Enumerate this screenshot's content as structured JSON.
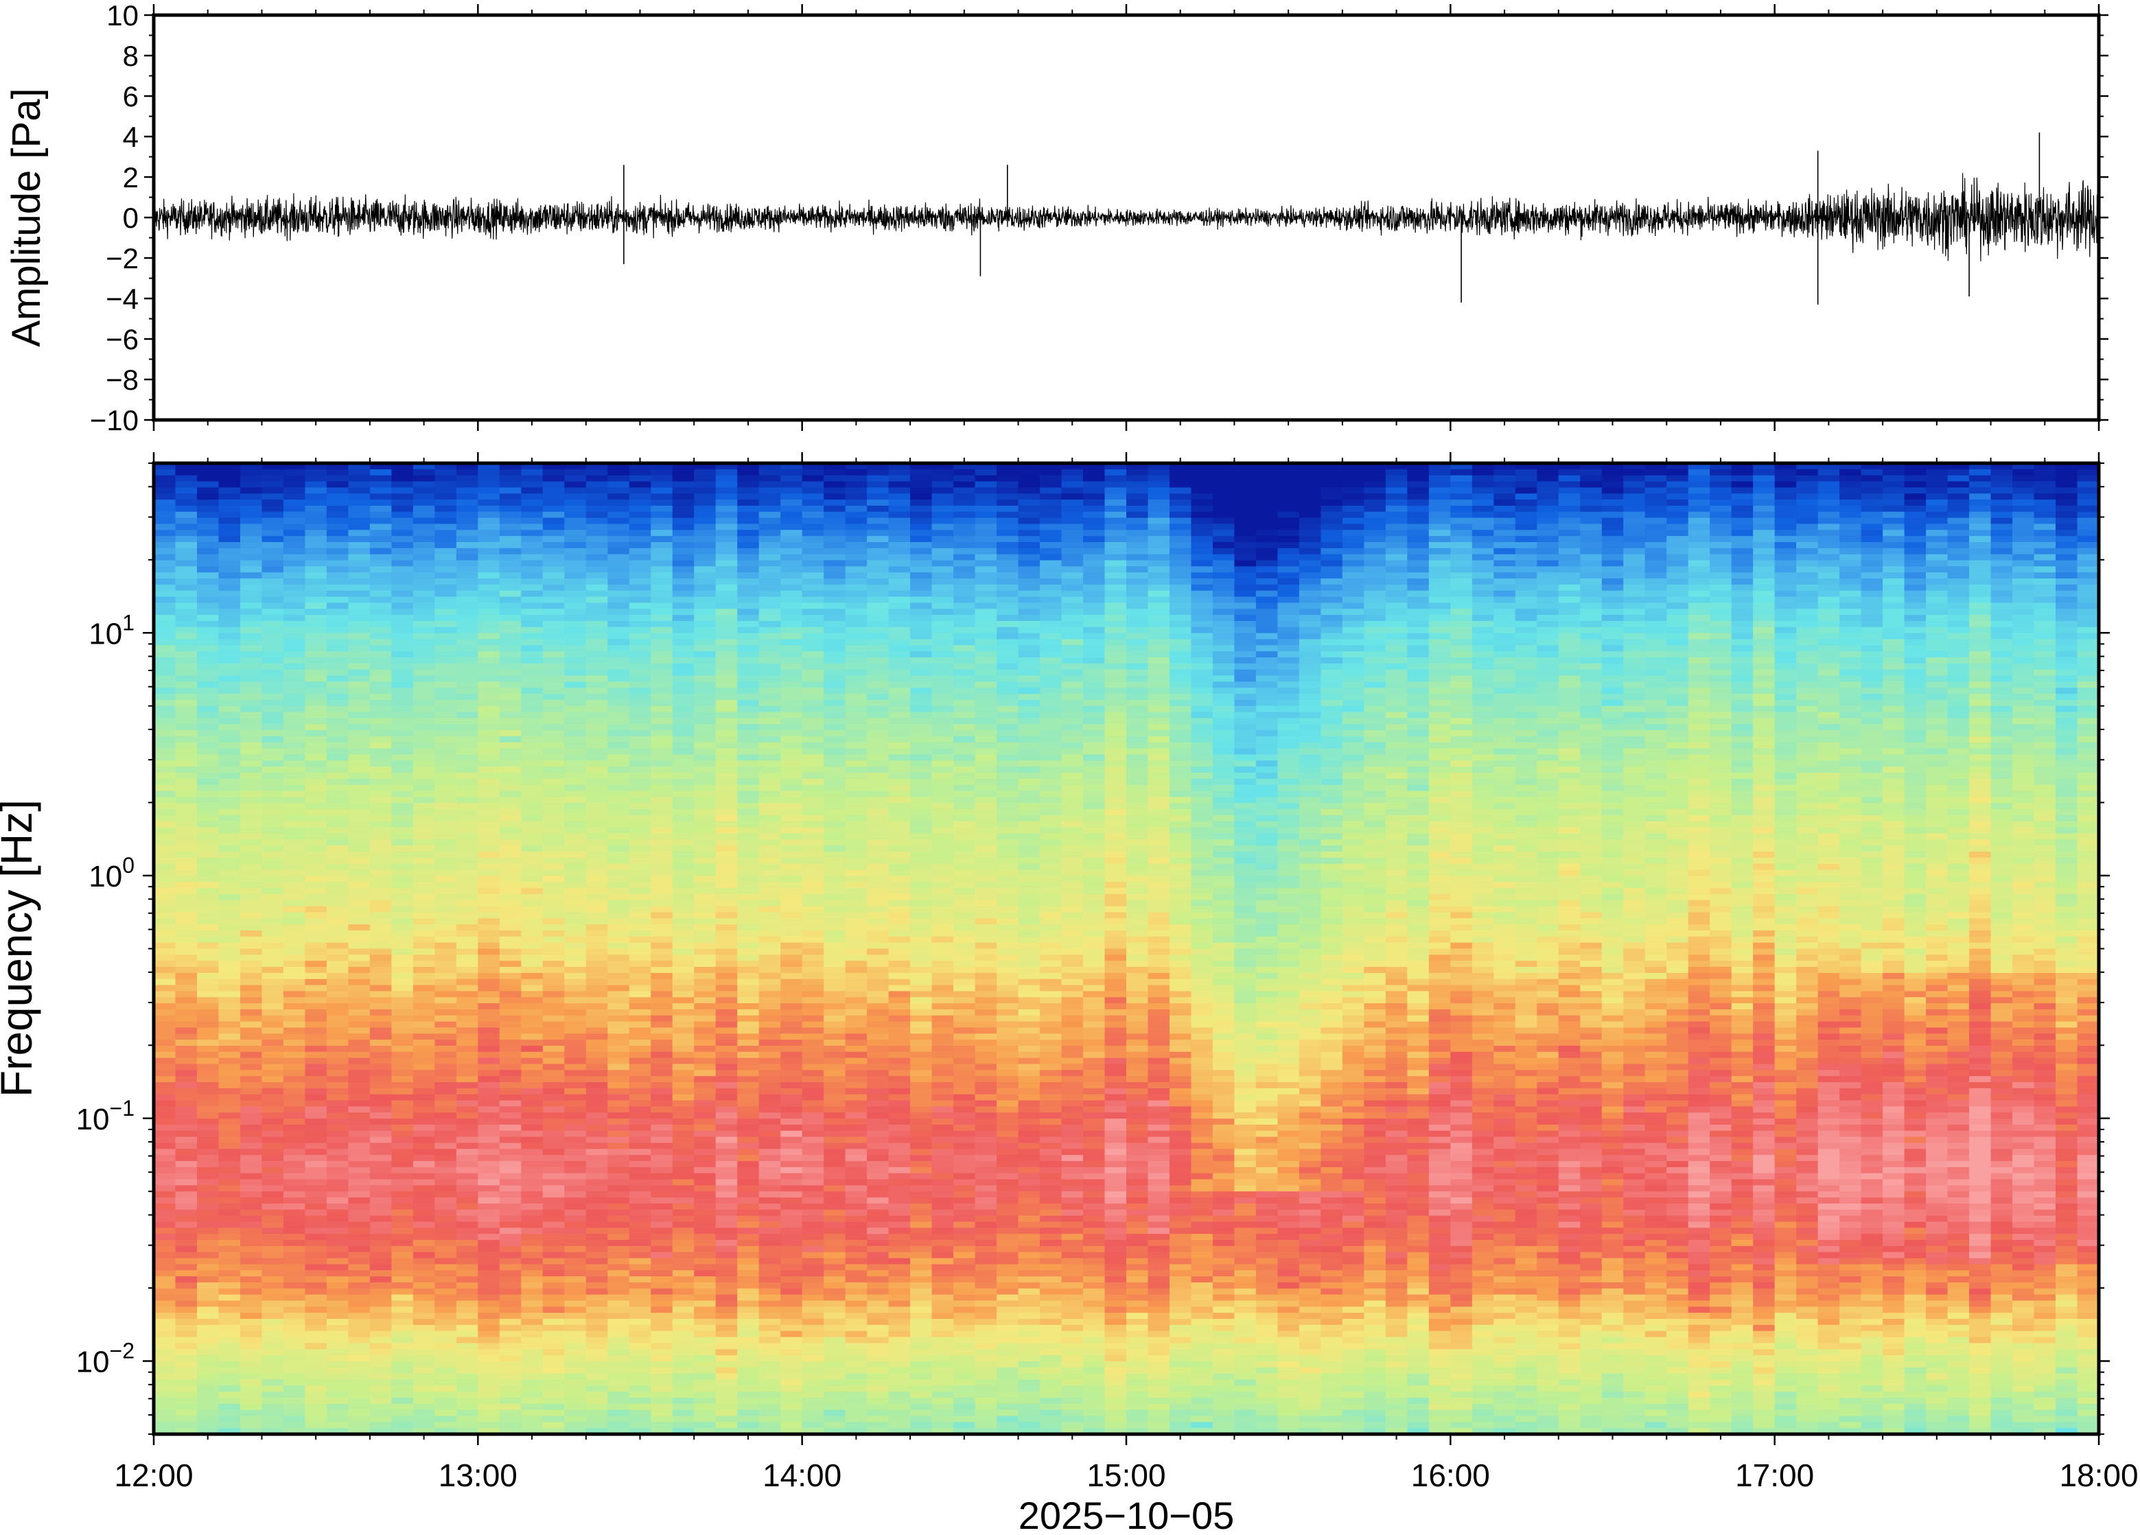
{
  "chart_data": [
    {
      "type": "line",
      "ylabel": "Amplitude [Pa]",
      "ylim": [
        -10,
        10
      ],
      "y_ticks": [
        "10",
        "8",
        "6",
        "4",
        "2",
        "0",
        "−2",
        "−4",
        "−6",
        "−8",
        "−10"
      ],
      "xlim": [
        "12:00",
        "18:00"
      ],
      "grid": false,
      "envelope": {
        "x": [
          "12:00",
          "12:30",
          "13:00",
          "13:30",
          "14:00",
          "14:30",
          "15:00",
          "15:30",
          "16:00",
          "16:30",
          "17:00",
          "17:15",
          "17:30",
          "18:00"
        ],
        "amplitude": [
          1.0,
          1.2,
          1.1,
          1.0,
          0.7,
          0.9,
          0.5,
          0.5,
          1.1,
          1.0,
          0.9,
          1.7,
          2.0,
          2.1
        ]
      },
      "spikes": [
        {
          "time": "13:27",
          "value": 2.6
        },
        {
          "time": "13:27",
          "value": -2.3
        },
        {
          "time": "14:38",
          "value": 2.6
        },
        {
          "time": "14:33",
          "value": -2.9
        },
        {
          "time": "16:02",
          "value": -4.2
        },
        {
          "time": "17:08",
          "value": 3.3
        },
        {
          "time": "17:08",
          "value": -4.3
        },
        {
          "time": "17:49",
          "value": 4.2
        },
        {
          "time": "17:36",
          "value": -3.9
        }
      ]
    },
    {
      "type": "heatmap",
      "ylabel": "Frequency [Hz]",
      "xlabel": "2025−10−05",
      "y_scale": "log",
      "ylim": [
        0.005,
        50
      ],
      "y_ticks": [
        {
          "base": "10",
          "exp": "1"
        },
        {
          "base": "10",
          "exp": "0"
        },
        {
          "base": "10",
          "exp": "−1"
        },
        {
          "base": "10",
          "exp": "−2"
        }
      ],
      "x_ticks": [
        "12:00",
        "13:00",
        "14:00",
        "15:00",
        "16:00",
        "17:00",
        "18:00"
      ],
      "colormap": [
        "#68e4e8",
        "#c8f08c",
        "#f5e87c",
        "#f8a050",
        "#ee5a5a",
        "#f9a0a0",
        "#4ab0ec",
        "#1060e0",
        "#0a1aa0"
      ],
      "quiet_period": [
        "15:10",
        "15:45"
      ]
    }
  ]
}
